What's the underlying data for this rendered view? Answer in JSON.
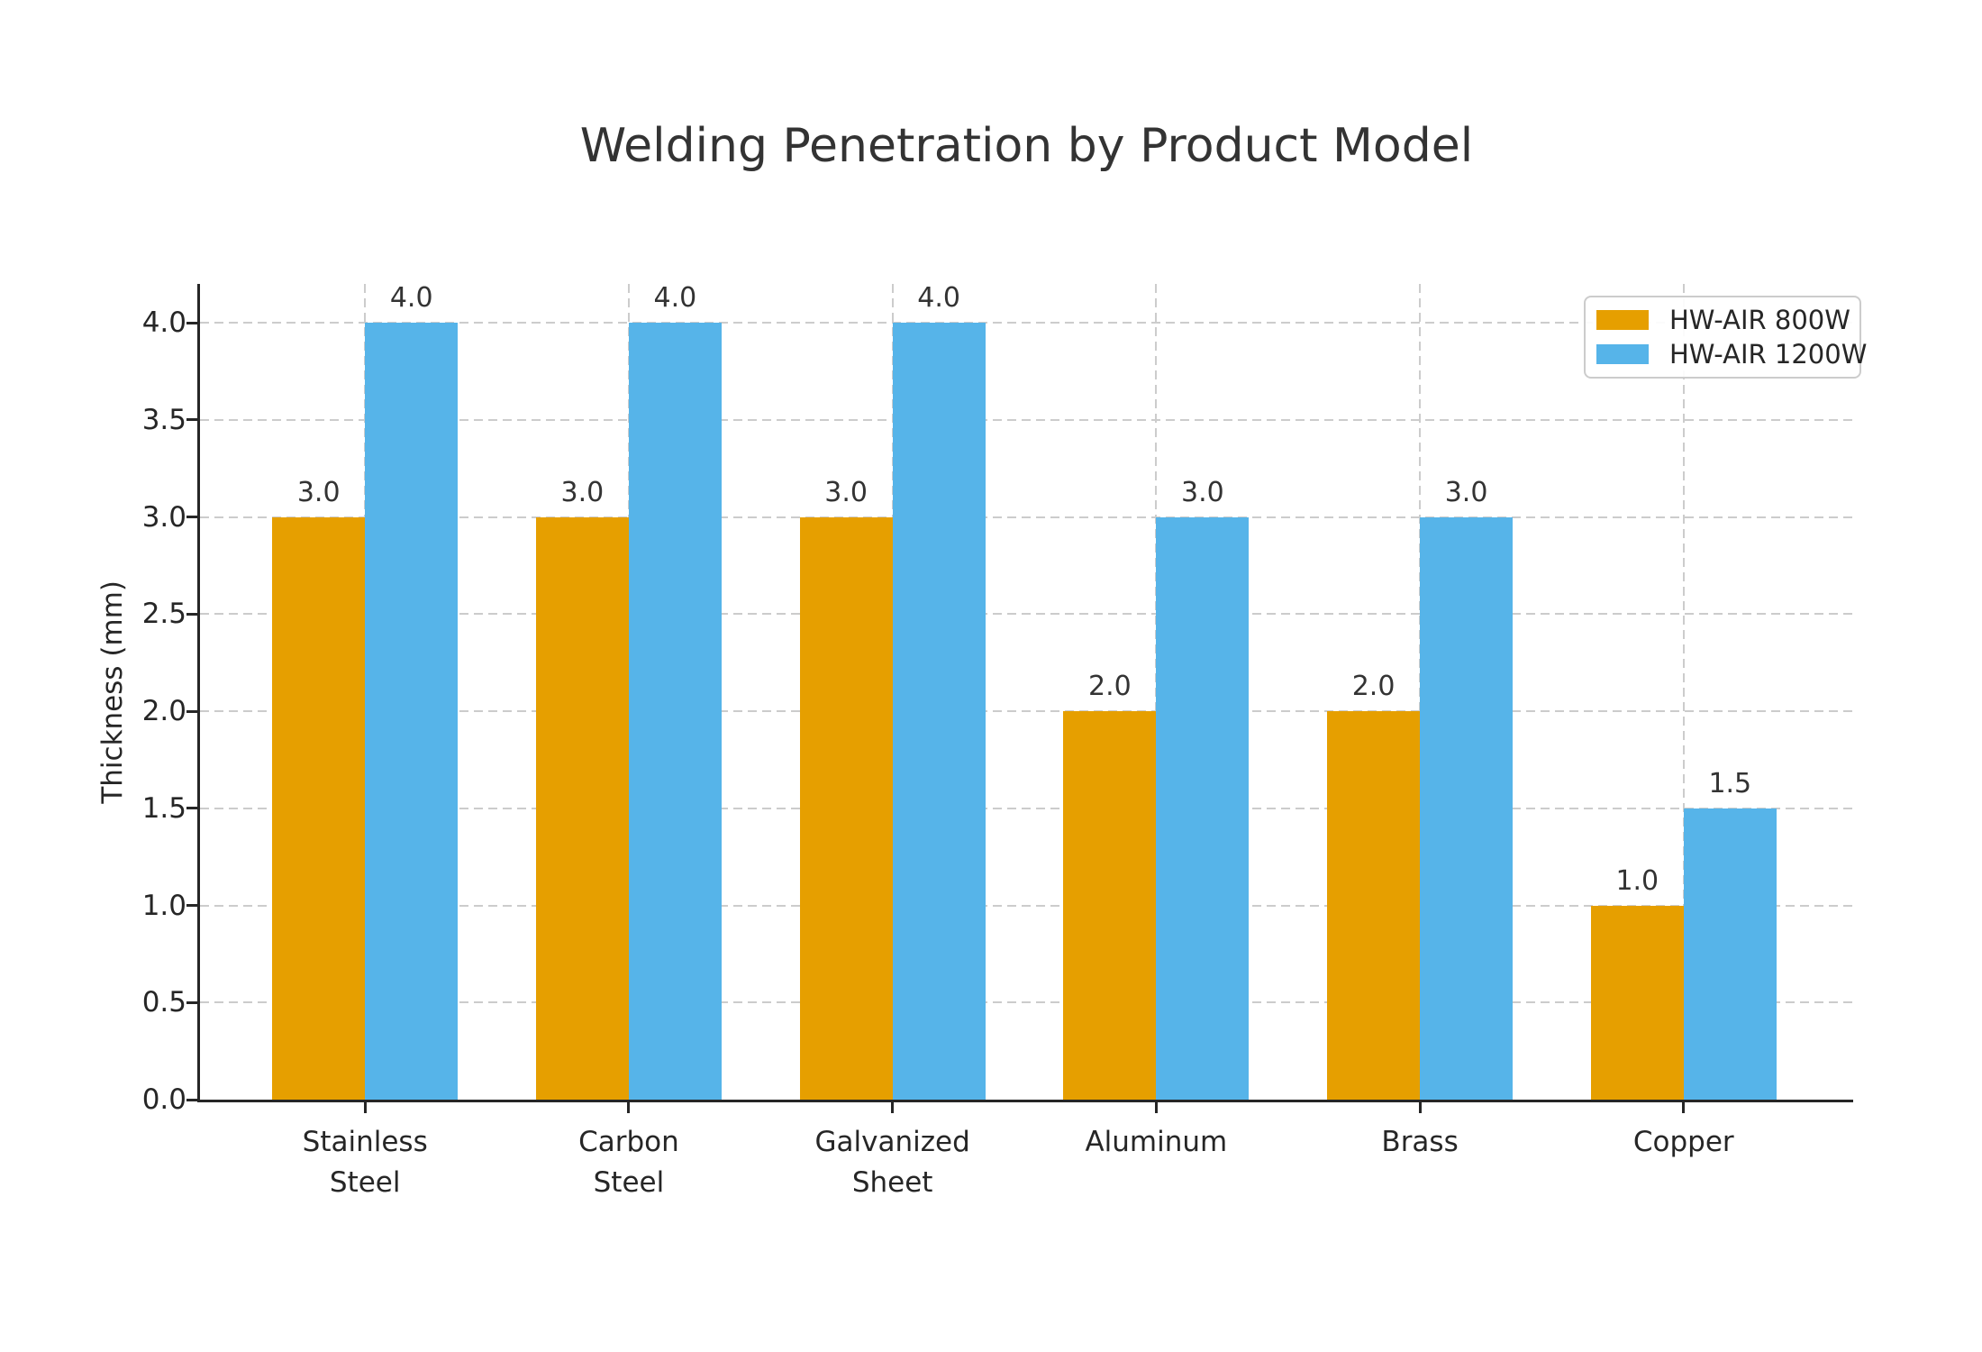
{
  "chart_data": {
    "type": "bar",
    "title": "Welding Penetration by Product Model",
    "ylabel": "Thickness (mm)",
    "xlabel": "",
    "categories": [
      "Stainless Steel",
      "Carbon Steel",
      "Galvanized Sheet",
      "Aluminum",
      "Brass",
      "Copper"
    ],
    "category_lines": [
      [
        "Stainless",
        "Steel"
      ],
      [
        "Carbon",
        "Steel"
      ],
      [
        "Galvanized",
        "Sheet"
      ],
      [
        "Aluminum"
      ],
      [
        "Brass"
      ],
      [
        "Copper"
      ]
    ],
    "series": [
      {
        "name": "HW-AIR 800W",
        "color": "#E69F00",
        "values": [
          3.0,
          3.0,
          3.0,
          2.0,
          2.0,
          1.0
        ]
      },
      {
        "name": "HW-AIR 1200W",
        "color": "#56B4E9",
        "values": [
          4.0,
          4.0,
          4.0,
          3.0,
          3.0,
          1.5
        ]
      }
    ],
    "bar_value_labels": [
      [
        "3.0",
        "3.0",
        "3.0",
        "2.0",
        "2.0",
        "1.0"
      ],
      [
        "4.0",
        "4.0",
        "4.0",
        "3.0",
        "3.0",
        "1.5"
      ]
    ],
    "ylim": [
      0,
      4.2
    ],
    "yticks": [
      "0.0",
      "0.5",
      "1.0",
      "1.5",
      "2.0",
      "2.5",
      "3.0",
      "3.5",
      "4.0"
    ],
    "grid": true,
    "grid_color": "#cccccc",
    "legend_position": "upper right",
    "axis_color": "#262626",
    "title_color": "#333333",
    "background_color": "#ffffff"
  }
}
